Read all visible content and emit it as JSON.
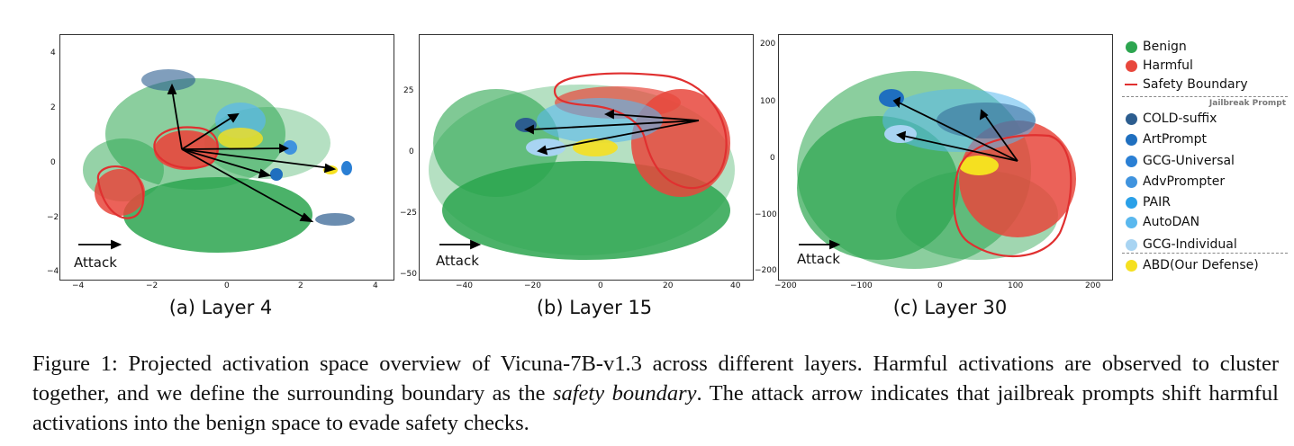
{
  "panels": [
    {
      "subcaption": "(a) Layer 4",
      "attack_label": "Attack",
      "xticks": [
        "−4",
        "−2",
        "0",
        "2",
        "4"
      ],
      "yticks": [
        "4",
        "2",
        "0",
        "−2",
        "−4"
      ]
    },
    {
      "subcaption": "(b) Layer 15",
      "attack_label": "Attack",
      "xticks": [
        "−40",
        "−20",
        "0",
        "20",
        "40"
      ],
      "yticks": [
        "25",
        "0",
        "−25",
        "−50"
      ]
    },
    {
      "subcaption": "(c) Layer 30",
      "attack_label": "Attack",
      "xticks": [
        "−200",
        "−100",
        "0",
        "100",
        "200"
      ],
      "yticks": [
        "200",
        "100",
        "0",
        "−100",
        "−200"
      ]
    }
  ],
  "legend": {
    "items": [
      {
        "label": "Benign",
        "color": "#2ca54f",
        "kind": "dot"
      },
      {
        "label": "Harmful",
        "color": "#e8473c",
        "kind": "dot"
      },
      {
        "label": "Safety Boundary",
        "color": "#e03030",
        "kind": "line"
      }
    ],
    "section_title": "Jailbreak Prompt",
    "jailbreak_items": [
      {
        "label": "COLD-suffix",
        "color": "#2c5d8f"
      },
      {
        "label": "ArtPrompt",
        "color": "#1f6fbf"
      },
      {
        "label": "GCG-Universal",
        "color": "#2a7fd4"
      },
      {
        "label": "AdvPrompter",
        "color": "#3f93de"
      },
      {
        "label": "PAIR",
        "color": "#2aa0e8"
      },
      {
        "label": "AutoDAN",
        "color": "#5ab8ee"
      },
      {
        "label": "GCG-Individual",
        "color": "#a8d4f2"
      }
    ],
    "defense_item": {
      "label": "ABD(Our Defense)",
      "color": "#f5e020"
    }
  },
  "caption": {
    "prefix": "Figure 1: Projected activation space overview of Vicuna-7B-v1.3 across different layers. Harmful activations are observed to cluster together, and we define the surrounding boundary as the ",
    "emphasis": "safety boundary",
    "suffix": ". The attack arrow indicates that jailbreak prompts shift harmful activations into the benign space to evade safety checks."
  }
}
